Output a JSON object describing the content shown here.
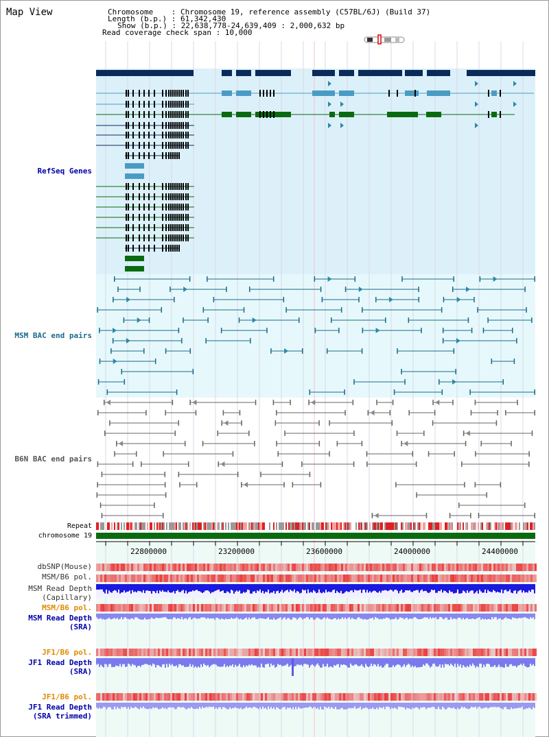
{
  "title": "Map View",
  "header": {
    "chromosome": "Chromosome    : Chromosome 19, reference assembly (C57BL/6J) (Build 37)",
    "length": "Length (b.p.) : 61,342,430",
    "show": "Show (b.p.) : 22,638,778-24,639,409 : 2,000,632 bp",
    "span": "Read coverage check span : 10,000"
  },
  "tracks": {
    "refseq": "RefSeq Genes",
    "msm_bac": "MSM BAC end pairs",
    "b6n_bac": "B6N BAC end pairs",
    "repeat": "Repeat",
    "chromosome": "chromosome 19",
    "dbsnp": "dbSNP(Mouse)",
    "msm_pol": "MSM/B6 pol.",
    "msm_depth_cap_1": "MSM Read Depth",
    "msm_depth_cap_2": "(Capillary)",
    "msm_pol_2": "MSM/B6 pol.",
    "msm_depth_sra_1": "MSM Read Depth",
    "msm_depth_sra_2": "(SRA)",
    "jf1_pol": "JF1/B6 pol.",
    "jf1_depth_1": "JF1 Read Depth",
    "jf1_depth_2": "(SRA)",
    "jf1_pol_2": "JF1/B6 pol.",
    "jf1_trim_1": "JF1 Read Depth",
    "jf1_trim_2": "(SRA trimmed)"
  },
  "axis": {
    "ticks": [
      "22800000",
      "23200000",
      "23600000",
      "24000000",
      "24400000"
    ]
  },
  "colors": {
    "refseq_bg": "#dcf0f9",
    "msm_bg": "#e6f8fb",
    "gene_dark": "#0a2a5a",
    "gene_light": "#4a9bc4",
    "gene_green": "#0a6a10",
    "msm_bac": "#1a6a8a",
    "b6n_bac": "#666666",
    "chrom": "#0a6a10",
    "label_blue": "#0000aa",
    "label_orange": "#e08a00",
    "label_teal": "#1a6a8a",
    "label_gray": "#555555"
  }
}
